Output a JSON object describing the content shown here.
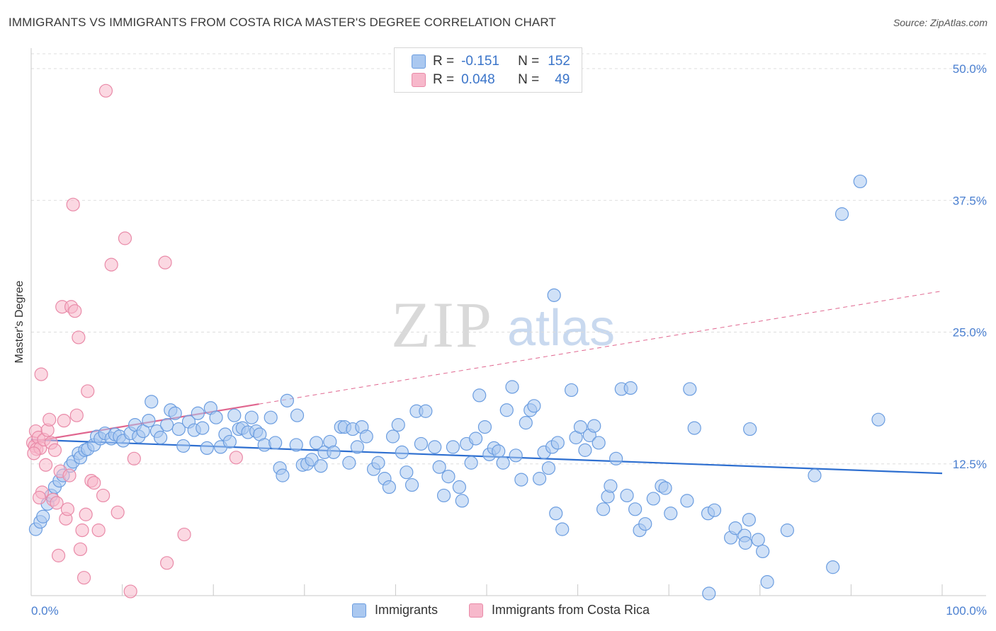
{
  "title": "IMMIGRANTS VS IMMIGRANTS FROM COSTA RICA MASTER'S DEGREE CORRELATION CHART",
  "source": "Source: ZipAtlas.com",
  "watermark": {
    "zip": "ZIP",
    "atlas": "atlas"
  },
  "legend": {
    "r_label": "R =",
    "n_label": "N =",
    "rows": [
      {
        "r": "-0.151",
        "n": "152"
      },
      {
        "r": "0.048",
        "n": "49"
      }
    ]
  },
  "colors": {
    "blue_fill": "#aac8f0",
    "blue_stroke": "#6b9de0",
    "blue_line": "#2e6fd0",
    "pink_fill": "#f7b8cb",
    "pink_stroke": "#e98aa8",
    "pink_line": "#e0668f",
    "grid": "#dddddd",
    "tick_text": "#4a7fd0"
  },
  "chart_data": {
    "type": "scatter",
    "title": "IMMIGRANTS VS IMMIGRANTS FROM COSTA RICA MASTER'S DEGREE CORRELATION CHART",
    "xlabel": "",
    "ylabel": "Master's Degree",
    "xlim": [
      0,
      100
    ],
    "ylim": [
      0,
      52
    ],
    "x_tick_labels": [
      "0.0%",
      "100.0%"
    ],
    "y_ticks": [
      12.5,
      25.0,
      37.5,
      50.0
    ],
    "y_tick_labels": [
      "12.5%",
      "25.0%",
      "37.5%",
      "50.0%"
    ],
    "grid": "horizontal dashed",
    "legend_position": "top-center",
    "series": [
      {
        "name": "Immigrants",
        "color": "#aac8f0",
        "trend": {
          "x": [
            0,
            100
          ],
          "y": [
            14.8,
            11.6
          ],
          "style": "solid"
        },
        "points": [
          [
            0.5,
            6.3
          ],
          [
            1.0,
            7.0
          ],
          [
            1.3,
            7.5
          ],
          [
            1.8,
            8.7
          ],
          [
            2.2,
            9.5
          ],
          [
            2.6,
            10.3
          ],
          [
            3.1,
            10.9
          ],
          [
            3.5,
            11.4
          ],
          [
            4.3,
            12.3
          ],
          [
            4.6,
            12.7
          ],
          [
            5.2,
            13.5
          ],
          [
            5.4,
            13.1
          ],
          [
            5.9,
            13.8
          ],
          [
            6.2,
            13.9
          ],
          [
            6.9,
            14.3
          ],
          [
            7.2,
            15.1
          ],
          [
            7.6,
            14.9
          ],
          [
            8.1,
            15.4
          ],
          [
            8.8,
            14.9
          ],
          [
            9.2,
            15.3
          ],
          [
            9.7,
            15.1
          ],
          [
            10.1,
            14.7
          ],
          [
            10.9,
            15.4
          ],
          [
            11.4,
            16.2
          ],
          [
            11.8,
            15.1
          ],
          [
            12.3,
            15.6
          ],
          [
            12.9,
            16.6
          ],
          [
            13.2,
            18.4
          ],
          [
            13.8,
            15.6
          ],
          [
            14.2,
            15.0
          ],
          [
            14.9,
            16.2
          ],
          [
            15.3,
            17.6
          ],
          [
            15.8,
            17.3
          ],
          [
            16.2,
            15.8
          ],
          [
            16.7,
            14.2
          ],
          [
            17.3,
            16.5
          ],
          [
            17.9,
            15.7
          ],
          [
            18.3,
            17.3
          ],
          [
            18.8,
            15.9
          ],
          [
            19.3,
            14.0
          ],
          [
            19.7,
            17.8
          ],
          [
            20.3,
            16.9
          ],
          [
            20.8,
            14.1
          ],
          [
            21.3,
            15.3
          ],
          [
            21.8,
            14.6
          ],
          [
            22.3,
            17.1
          ],
          [
            22.8,
            15.8
          ],
          [
            23.2,
            15.9
          ],
          [
            23.8,
            15.5
          ],
          [
            24.2,
            16.9
          ],
          [
            24.7,
            15.6
          ],
          [
            25.1,
            15.3
          ],
          [
            25.6,
            14.3
          ],
          [
            26.3,
            16.9
          ],
          [
            26.8,
            14.5
          ],
          [
            27.3,
            12.1
          ],
          [
            27.6,
            11.4
          ],
          [
            28.1,
            18.5
          ],
          [
            29.1,
            14.3
          ],
          [
            29.2,
            17.1
          ],
          [
            29.8,
            12.4
          ],
          [
            30.3,
            12.5
          ],
          [
            30.8,
            12.9
          ],
          [
            31.3,
            14.5
          ],
          [
            31.8,
            12.3
          ],
          [
            32.2,
            13.6
          ],
          [
            32.8,
            14.6
          ],
          [
            33.2,
            13.6
          ],
          [
            34.0,
            16.0
          ],
          [
            34.4,
            16.0
          ],
          [
            34.9,
            12.6
          ],
          [
            35.3,
            15.8
          ],
          [
            35.8,
            14.1
          ],
          [
            36.3,
            16.0
          ],
          [
            36.8,
            15.1
          ],
          [
            37.6,
            12.0
          ],
          [
            38.1,
            12.6
          ],
          [
            38.8,
            11.1
          ],
          [
            39.3,
            10.3
          ],
          [
            39.7,
            15.1
          ],
          [
            40.3,
            16.2
          ],
          [
            40.7,
            13.6
          ],
          [
            41.2,
            11.7
          ],
          [
            41.8,
            10.5
          ],
          [
            42.3,
            17.5
          ],
          [
            42.8,
            14.4
          ],
          [
            43.3,
            17.5
          ],
          [
            44.3,
            14.1
          ],
          [
            44.8,
            12.2
          ],
          [
            45.3,
            9.5
          ],
          [
            45.8,
            11.3
          ],
          [
            46.3,
            14.1
          ],
          [
            47.0,
            10.3
          ],
          [
            47.3,
            9.0
          ],
          [
            47.8,
            14.4
          ],
          [
            48.3,
            12.6
          ],
          [
            48.8,
            14.9
          ],
          [
            49.2,
            19.0
          ],
          [
            49.8,
            16.0
          ],
          [
            50.3,
            13.4
          ],
          [
            50.8,
            14.0
          ],
          [
            51.3,
            13.7
          ],
          [
            51.8,
            12.6
          ],
          [
            52.2,
            17.6
          ],
          [
            52.8,
            19.8
          ],
          [
            53.2,
            13.3
          ],
          [
            53.8,
            11.0
          ],
          [
            54.3,
            16.4
          ],
          [
            54.8,
            17.6
          ],
          [
            55.2,
            18.0
          ],
          [
            55.8,
            11.1
          ],
          [
            56.3,
            13.6
          ],
          [
            56.8,
            12.1
          ],
          [
            57.2,
            14.1
          ],
          [
            57.6,
            7.8
          ],
          [
            57.8,
            14.5
          ],
          [
            58.3,
            6.3
          ],
          [
            59.3,
            19.5
          ],
          [
            59.8,
            15.0
          ],
          [
            60.3,
            16.0
          ],
          [
            60.8,
            13.8
          ],
          [
            61.3,
            15.2
          ],
          [
            61.8,
            16.1
          ],
          [
            62.3,
            14.5
          ],
          [
            62.8,
            8.2
          ],
          [
            63.3,
            9.4
          ],
          [
            63.6,
            10.4
          ],
          [
            64.2,
            13.0
          ],
          [
            64.8,
            19.6
          ],
          [
            65.4,
            9.5
          ],
          [
            65.8,
            19.7
          ],
          [
            66.3,
            8.2
          ],
          [
            66.8,
            6.2
          ],
          [
            67.4,
            6.8
          ],
          [
            68.3,
            9.2
          ],
          [
            69.2,
            10.4
          ],
          [
            69.6,
            10.2
          ],
          [
            70.2,
            7.8
          ],
          [
            72.0,
            9.0
          ],
          [
            72.8,
            15.9
          ],
          [
            74.3,
            7.8
          ],
          [
            75.0,
            8.1
          ],
          [
            76.8,
            5.5
          ],
          [
            77.3,
            6.4
          ],
          [
            78.3,
            5.7
          ],
          [
            78.4,
            5.0
          ],
          [
            78.8,
            7.2
          ],
          [
            79.8,
            5.3
          ],
          [
            80.3,
            4.2
          ],
          [
            80.8,
            1.3
          ],
          [
            83.0,
            6.2
          ],
          [
            86.0,
            11.4
          ],
          [
            88.0,
            2.7
          ],
          [
            89.0,
            36.2
          ],
          [
            91.0,
            39.3
          ],
          [
            93.0,
            16.7
          ],
          [
            57.4,
            28.5
          ],
          [
            72.3,
            19.6
          ],
          [
            74.4,
            0.2
          ],
          [
            78.9,
            15.8
          ]
        ]
      },
      {
        "name": "Immigrants from Costa Rica",
        "color": "#f7b8cb",
        "trend": {
          "x": [
            0,
            100
          ],
          "y": [
            14.6,
            28.9
          ],
          "solid_until_x": 25,
          "style": "solid then dashed"
        },
        "points": [
          [
            0.2,
            14.5
          ],
          [
            0.4,
            14.2
          ],
          [
            0.5,
            15.6
          ],
          [
            0.6,
            13.9
          ],
          [
            0.8,
            15.0
          ],
          [
            1.0,
            14.0
          ],
          [
            1.1,
            21.0
          ],
          [
            1.2,
            9.8
          ],
          [
            1.4,
            14.8
          ],
          [
            1.6,
            12.4
          ],
          [
            1.8,
            15.7
          ],
          [
            2.0,
            16.7
          ],
          [
            2.2,
            14.5
          ],
          [
            2.4,
            9.1
          ],
          [
            2.6,
            13.8
          ],
          [
            2.8,
            8.8
          ],
          [
            3.0,
            3.8
          ],
          [
            3.2,
            11.8
          ],
          [
            3.4,
            27.4
          ],
          [
            3.6,
            16.6
          ],
          [
            3.8,
            7.3
          ],
          [
            4.0,
            8.2
          ],
          [
            4.2,
            11.4
          ],
          [
            4.4,
            27.4
          ],
          [
            4.6,
            37.1
          ],
          [
            4.8,
            27.0
          ],
          [
            5.0,
            17.1
          ],
          [
            5.2,
            24.5
          ],
          [
            5.4,
            4.4
          ],
          [
            5.6,
            6.2
          ],
          [
            5.8,
            1.7
          ],
          [
            6.0,
            7.7
          ],
          [
            6.2,
            19.4
          ],
          [
            6.6,
            10.9
          ],
          [
            6.9,
            10.7
          ],
          [
            7.4,
            6.2
          ],
          [
            7.9,
            9.5
          ],
          [
            8.2,
            47.9
          ],
          [
            8.8,
            31.4
          ],
          [
            9.5,
            7.9
          ],
          [
            10.3,
            33.9
          ],
          [
            10.9,
            0.4
          ],
          [
            11.3,
            13.0
          ],
          [
            14.7,
            31.6
          ],
          [
            14.9,
            3.1
          ],
          [
            16.8,
            5.8
          ],
          [
            22.5,
            13.1
          ],
          [
            0.9,
            9.3
          ],
          [
            0.3,
            13.5
          ]
        ]
      }
    ]
  },
  "bottom_legend": [
    {
      "label": "Immigrants"
    },
    {
      "label": "Immigrants from Costa Rica"
    }
  ]
}
